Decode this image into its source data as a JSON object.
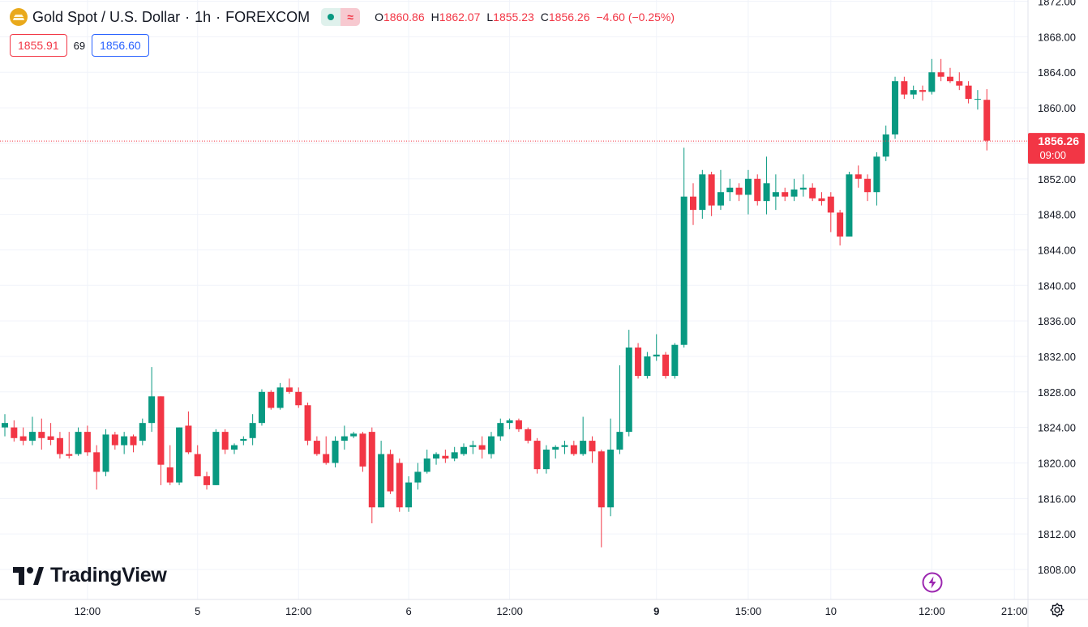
{
  "header": {
    "title": "Gold Spot / U.S. Dollar",
    "interval": "1h",
    "exchange": "FOREXCOM",
    "open_label": "O",
    "open": "1860.86",
    "high_label": "H",
    "high": "1862.07",
    "low_label": "L",
    "low": "1855.23",
    "close_label": "C",
    "close": "1856.26",
    "change": "−4.60 (−0.25%)"
  },
  "quote": {
    "bid": "1855.91",
    "spread": "69",
    "ask": "1856.60"
  },
  "branding": {
    "logo_text": "TradingView"
  },
  "colors": {
    "up": "#089981",
    "down": "#f23645",
    "grid": "#f0f3fa",
    "text": "#131722",
    "ask": "#2962ff"
  },
  "icons": {
    "symbol": "gold-coin-icon",
    "replay": "lightning-icon",
    "settings": "gear-icon"
  },
  "chart_data": {
    "type": "candlestick",
    "symbol": "XAUUSD",
    "interval": "1h",
    "last_price": 1856.26,
    "last_price_label": "1856.26",
    "countdown_label": "09:00",
    "ylim": [
      1805,
      1872
    ],
    "y_ticks": [
      1808,
      1812,
      1816,
      1820,
      1824,
      1828,
      1832,
      1836,
      1840,
      1844,
      1848,
      1852,
      1856,
      1860,
      1864,
      1868,
      1872
    ],
    "y_tick_labels": [
      "1808.00",
      "1812.00",
      "1816.00",
      "1820.00",
      "1824.00",
      "1828.00",
      "1832.00",
      "1836.00",
      "1840.00",
      "1844.00",
      "1848.00",
      "1852.00",
      "",
      "1860.00",
      "1864.00",
      "1868.00",
      "1872.00"
    ],
    "x_ticks": [
      {
        "index": 9,
        "label": "12:00",
        "bold": false
      },
      {
        "index": 21,
        "label": "5",
        "bold": false
      },
      {
        "index": 32,
        "label": "12:00",
        "bold": false
      },
      {
        "index": 44,
        "label": "6",
        "bold": false
      },
      {
        "index": 55,
        "label": "12:00",
        "bold": false
      },
      {
        "index": 71,
        "label": "9",
        "bold": true
      },
      {
        "index": 81,
        "label": "15:00",
        "bold": false
      },
      {
        "index": 90,
        "label": "10",
        "bold": false
      },
      {
        "index": 101,
        "label": "12:00",
        "bold": false
      },
      {
        "index": 110,
        "label": "21:00",
        "bold": false
      }
    ],
    "candles": [
      [
        1824.0,
        1825.5,
        1823.0,
        1824.5
      ],
      [
        1824.0,
        1824.8,
        1822.4,
        1822.8
      ],
      [
        1823.0,
        1824.0,
        1822.0,
        1822.5
      ],
      [
        1822.5,
        1825.2,
        1822.0,
        1823.5
      ],
      [
        1823.5,
        1825.0,
        1821.5,
        1822.8
      ],
      [
        1823.0,
        1824.5,
        1822.0,
        1822.6
      ],
      [
        1822.8,
        1823.5,
        1820.5,
        1821.0
      ],
      [
        1821.0,
        1823.5,
        1820.5,
        1820.8
      ],
      [
        1821.0,
        1824.0,
        1820.8,
        1823.5
      ],
      [
        1823.5,
        1824.2,
        1820.8,
        1821.2
      ],
      [
        1821.2,
        1822.0,
        1817.0,
        1819.0
      ],
      [
        1819.0,
        1823.8,
        1818.5,
        1823.2
      ],
      [
        1823.2,
        1823.5,
        1821.5,
        1822.0
      ],
      [
        1822.0,
        1823.5,
        1821.0,
        1823.0
      ],
      [
        1823.0,
        1823.2,
        1821.2,
        1822.0
      ],
      [
        1822.5,
        1825.0,
        1822.0,
        1824.5
      ],
      [
        1824.5,
        1830.8,
        1823.5,
        1827.5
      ],
      [
        1827.5,
        1827.5,
        1817.5,
        1819.8
      ],
      [
        1819.5,
        1822.0,
        1817.5,
        1817.8
      ],
      [
        1817.8,
        1824.0,
        1817.5,
        1824.0
      ],
      [
        1824.2,
        1825.8,
        1821.0,
        1821.2
      ],
      [
        1821.0,
        1822.0,
        1818.5,
        1818.5
      ],
      [
        1818.5,
        1819.0,
        1817.0,
        1817.5
      ],
      [
        1817.5,
        1823.8,
        1817.5,
        1823.5
      ],
      [
        1823.5,
        1823.8,
        1821.0,
        1821.5
      ],
      [
        1821.5,
        1822.2,
        1821.0,
        1822.0
      ],
      [
        1822.5,
        1823.0,
        1822.0,
        1822.7
      ],
      [
        1822.8,
        1825.5,
        1822.0,
        1824.5
      ],
      [
        1824.5,
        1828.3,
        1824.2,
        1828.0
      ],
      [
        1828.0,
        1828.2,
        1826.0,
        1826.2
      ],
      [
        1826.2,
        1829.0,
        1826.0,
        1828.5
      ],
      [
        1828.5,
        1829.5,
        1827.8,
        1828.0
      ],
      [
        1828.0,
        1828.5,
        1826.2,
        1826.5
      ],
      [
        1826.5,
        1826.8,
        1822.0,
        1822.5
      ],
      [
        1822.5,
        1823.0,
        1820.8,
        1821.0
      ],
      [
        1821.0,
        1823.0,
        1819.8,
        1820.0
      ],
      [
        1820.0,
        1823.0,
        1819.5,
        1822.5
      ],
      [
        1822.5,
        1824.2,
        1821.5,
        1823.0
      ],
      [
        1823.0,
        1823.5,
        1822.8,
        1823.3
      ],
      [
        1823.3,
        1823.5,
        1819.0,
        1819.6
      ],
      [
        1823.5,
        1824.0,
        1813.2,
        1815.0
      ],
      [
        1815.0,
        1822.5,
        1815.0,
        1821.0
      ],
      [
        1821.0,
        1821.5,
        1816.5,
        1816.8
      ],
      [
        1820.0,
        1820.5,
        1814.5,
        1815.0
      ],
      [
        1815.0,
        1818.5,
        1814.5,
        1817.8
      ],
      [
        1817.8,
        1820.0,
        1817.0,
        1819.0
      ],
      [
        1819.0,
        1821.5,
        1818.8,
        1820.5
      ],
      [
        1820.5,
        1821.2,
        1819.8,
        1821.0
      ],
      [
        1820.8,
        1821.5,
        1820.0,
        1820.5
      ],
      [
        1820.5,
        1821.8,
        1820.2,
        1821.2
      ],
      [
        1821.0,
        1822.2,
        1820.8,
        1821.8
      ],
      [
        1821.8,
        1822.5,
        1821.0,
        1822.0
      ],
      [
        1822.0,
        1823.0,
        1820.5,
        1821.5
      ],
      [
        1821.0,
        1823.5,
        1820.5,
        1823.0
      ],
      [
        1823.0,
        1825.0,
        1822.5,
        1824.5
      ],
      [
        1824.5,
        1825.0,
        1823.8,
        1824.8
      ],
      [
        1824.8,
        1825.0,
        1823.5,
        1823.8
      ],
      [
        1823.8,
        1824.0,
        1822.2,
        1822.5
      ],
      [
        1822.5,
        1822.8,
        1818.8,
        1819.3
      ],
      [
        1819.3,
        1822.0,
        1818.8,
        1821.5
      ],
      [
        1821.5,
        1822.0,
        1820.5,
        1821.8
      ],
      [
        1821.8,
        1822.5,
        1821.0,
        1822.0
      ],
      [
        1822.0,
        1822.5,
        1820.8,
        1821.0
      ],
      [
        1821.0,
        1825.2,
        1820.8,
        1822.5
      ],
      [
        1822.5,
        1823.0,
        1820.0,
        1821.3
      ],
      [
        1821.3,
        1821.5,
        1810.5,
        1815.0
      ],
      [
        1815.0,
        1825.0,
        1814.0,
        1821.5
      ],
      [
        1821.5,
        1831.0,
        1821.0,
        1823.5
      ],
      [
        1823.5,
        1835.0,
        1823.0,
        1833.0
      ],
      [
        1833.0,
        1833.5,
        1829.5,
        1829.8
      ],
      [
        1829.8,
        1832.5,
        1829.5,
        1832.0
      ],
      [
        1832.0,
        1834.5,
        1831.5,
        1832.2
      ],
      [
        1832.2,
        1832.5,
        1829.5,
        1829.8
      ],
      [
        1829.8,
        1833.5,
        1829.5,
        1833.3
      ],
      [
        1833.3,
        1855.5,
        1833.0,
        1850.0
      ],
      [
        1850.0,
        1851.5,
        1846.8,
        1848.5
      ],
      [
        1848.5,
        1853.0,
        1847.5,
        1852.5
      ],
      [
        1852.5,
        1852.8,
        1847.8,
        1849.0
      ],
      [
        1849.0,
        1853.0,
        1848.5,
        1850.5
      ],
      [
        1850.5,
        1852.0,
        1849.5,
        1851.0
      ],
      [
        1851.0,
        1851.5,
        1849.5,
        1850.2
      ],
      [
        1850.2,
        1853.0,
        1848.0,
        1852.0
      ],
      [
        1852.0,
        1852.5,
        1849.0,
        1849.5
      ],
      [
        1849.5,
        1854.5,
        1848.0,
        1851.5
      ],
      [
        1850.0,
        1852.5,
        1848.5,
        1850.5
      ],
      [
        1850.5,
        1851.0,
        1849.5,
        1850.0
      ],
      [
        1850.0,
        1852.0,
        1849.5,
        1850.8
      ],
      [
        1850.8,
        1852.5,
        1850.0,
        1851.0
      ],
      [
        1851.0,
        1851.5,
        1849.5,
        1849.8
      ],
      [
        1849.8,
        1850.5,
        1849.0,
        1849.5
      ],
      [
        1850.0,
        1850.5,
        1846.0,
        1848.2
      ],
      [
        1848.2,
        1848.5,
        1844.5,
        1845.5
      ],
      [
        1845.5,
        1852.8,
        1845.5,
        1852.5
      ],
      [
        1852.5,
        1853.5,
        1851.0,
        1852.0
      ],
      [
        1852.0,
        1852.5,
        1849.5,
        1850.5
      ],
      [
        1850.5,
        1855.0,
        1849.0,
        1854.5
      ],
      [
        1854.5,
        1858.0,
        1854.0,
        1857.0
      ],
      [
        1857.0,
        1863.5,
        1856.5,
        1863.0
      ],
      [
        1863.0,
        1863.5,
        1861.0,
        1861.5
      ],
      [
        1861.5,
        1862.5,
        1861.0,
        1862.0
      ],
      [
        1862.0,
        1862.5,
        1860.8,
        1861.8
      ],
      [
        1861.8,
        1865.5,
        1861.5,
        1864.0
      ],
      [
        1864.0,
        1865.5,
        1863.0,
        1863.5
      ],
      [
        1863.5,
        1864.5,
        1862.8,
        1863.0
      ],
      [
        1863.0,
        1864.0,
        1862.0,
        1862.5
      ],
      [
        1862.5,
        1863.0,
        1860.5,
        1861.0
      ],
      [
        1861.0,
        1862.0,
        1859.8,
        1861.0
      ],
      [
        1860.9,
        1862.1,
        1855.2,
        1856.3
      ]
    ]
  }
}
